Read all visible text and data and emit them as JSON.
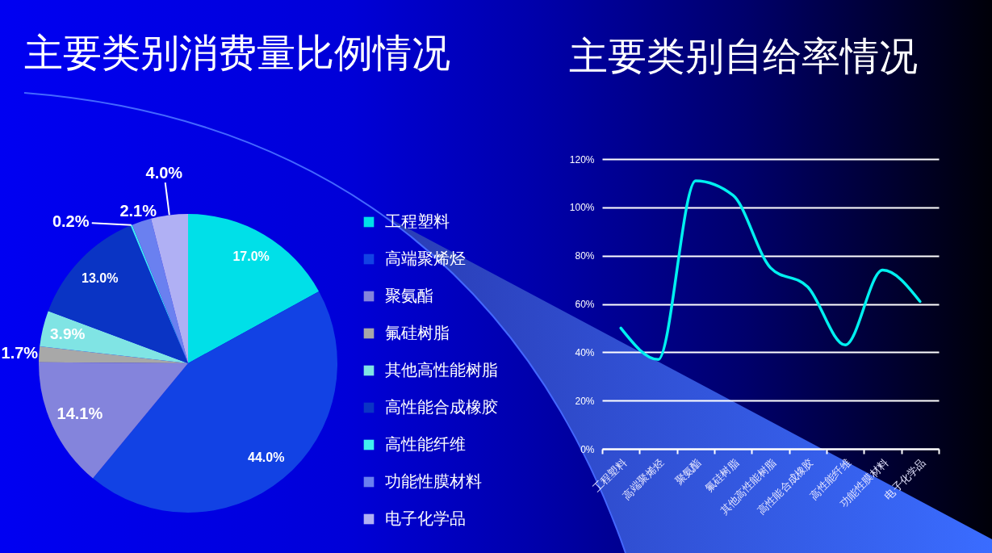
{
  "chart_data": [
    {
      "type": "pie",
      "title": "主要类别消费量比例情况",
      "categories": [
        "工程塑料",
        "高端聚烯烃",
        "聚氨酯",
        "氟硅树脂",
        "其他高性能树脂",
        "高性能合成橡胶",
        "高性能纤维",
        "功能性膜材料",
        "电子化学品"
      ],
      "values": [
        17.0,
        44.0,
        14.1,
        1.7,
        3.9,
        13.0,
        0.2,
        2.1,
        4.0
      ],
      "colors": [
        "#00e0e8",
        "#1242e4",
        "#8484dc",
        "#a8a8a8",
        "#80e4e4",
        "#0a34c4",
        "#40f0f0",
        "#6a80f0",
        "#b0b0f4"
      ],
      "value_labels": [
        "17.0%",
        "44.0%",
        "14.1%",
        "1.7%",
        "3.9%",
        "13.0%",
        "0.2%",
        "2.1%",
        "4.0%"
      ],
      "legend": "right"
    },
    {
      "type": "line",
      "title": "主要类别自给率情况",
      "categories": [
        "工程塑料",
        "高端聚烯烃",
        "聚氨酯",
        "氟硅树脂",
        "其他高性能树脂",
        "高性能合成橡胶",
        "高性能纤维",
        "功能性膜材料",
        "电子化学品"
      ],
      "series": [
        {
          "color": "#00f0f0",
          "values": [
            50,
            37,
            111,
            105,
            75,
            67,
            43,
            74,
            61
          ]
        }
      ],
      "ylim": [
        0,
        120
      ],
      "yticks": [
        {
          "value": 0,
          "label": "0%"
        },
        {
          "value": 20,
          "label": "20%"
        },
        {
          "value": 40,
          "label": "40%"
        },
        {
          "value": 60,
          "label": "60%"
        },
        {
          "value": 80,
          "label": "80%"
        },
        {
          "value": 100,
          "label": "100%"
        },
        {
          "value": 120,
          "label": "120%"
        }
      ],
      "grid": "y",
      "line_style": "solid"
    }
  ]
}
